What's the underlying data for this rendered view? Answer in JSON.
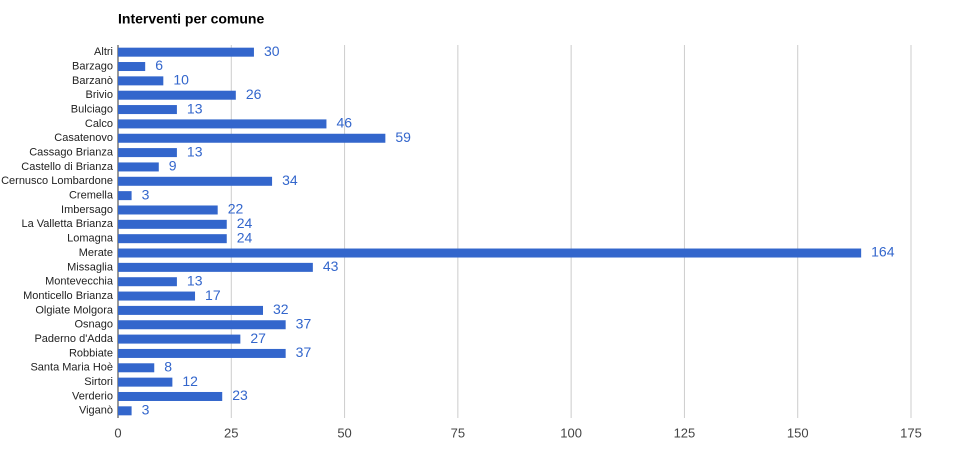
{
  "chart_data": {
    "type": "bar",
    "title": "Interventi per comune",
    "categories": [
      "Altri",
      "Barzago",
      "Barzanò",
      "Brivio",
      "Bulciago",
      "Calco",
      "Casatenovo",
      "Cassago Brianza",
      "Castello di Brianza",
      "Cernusco Lombardone",
      "Cremella",
      "Imbersago",
      "La Valletta Brianza",
      "Lomagna",
      "Merate",
      "Missaglia",
      "Montevecchia",
      "Monticello Brianza",
      "Olgiate Molgora",
      "Osnago",
      "Paderno d'Adda",
      "Robbiate",
      "Santa Maria Hoè",
      "Sirtori",
      "Verderio",
      "Viganò"
    ],
    "values": [
      30,
      6,
      10,
      26,
      13,
      46,
      59,
      13,
      9,
      34,
      3,
      22,
      24,
      24,
      164,
      43,
      13,
      17,
      32,
      37,
      27,
      37,
      8,
      12,
      23,
      3
    ],
    "color": "#3366cc",
    "xlim": [
      0,
      175
    ],
    "xticks": [
      0,
      25,
      50,
      75,
      100,
      125,
      150,
      175
    ],
    "grid": true
  }
}
